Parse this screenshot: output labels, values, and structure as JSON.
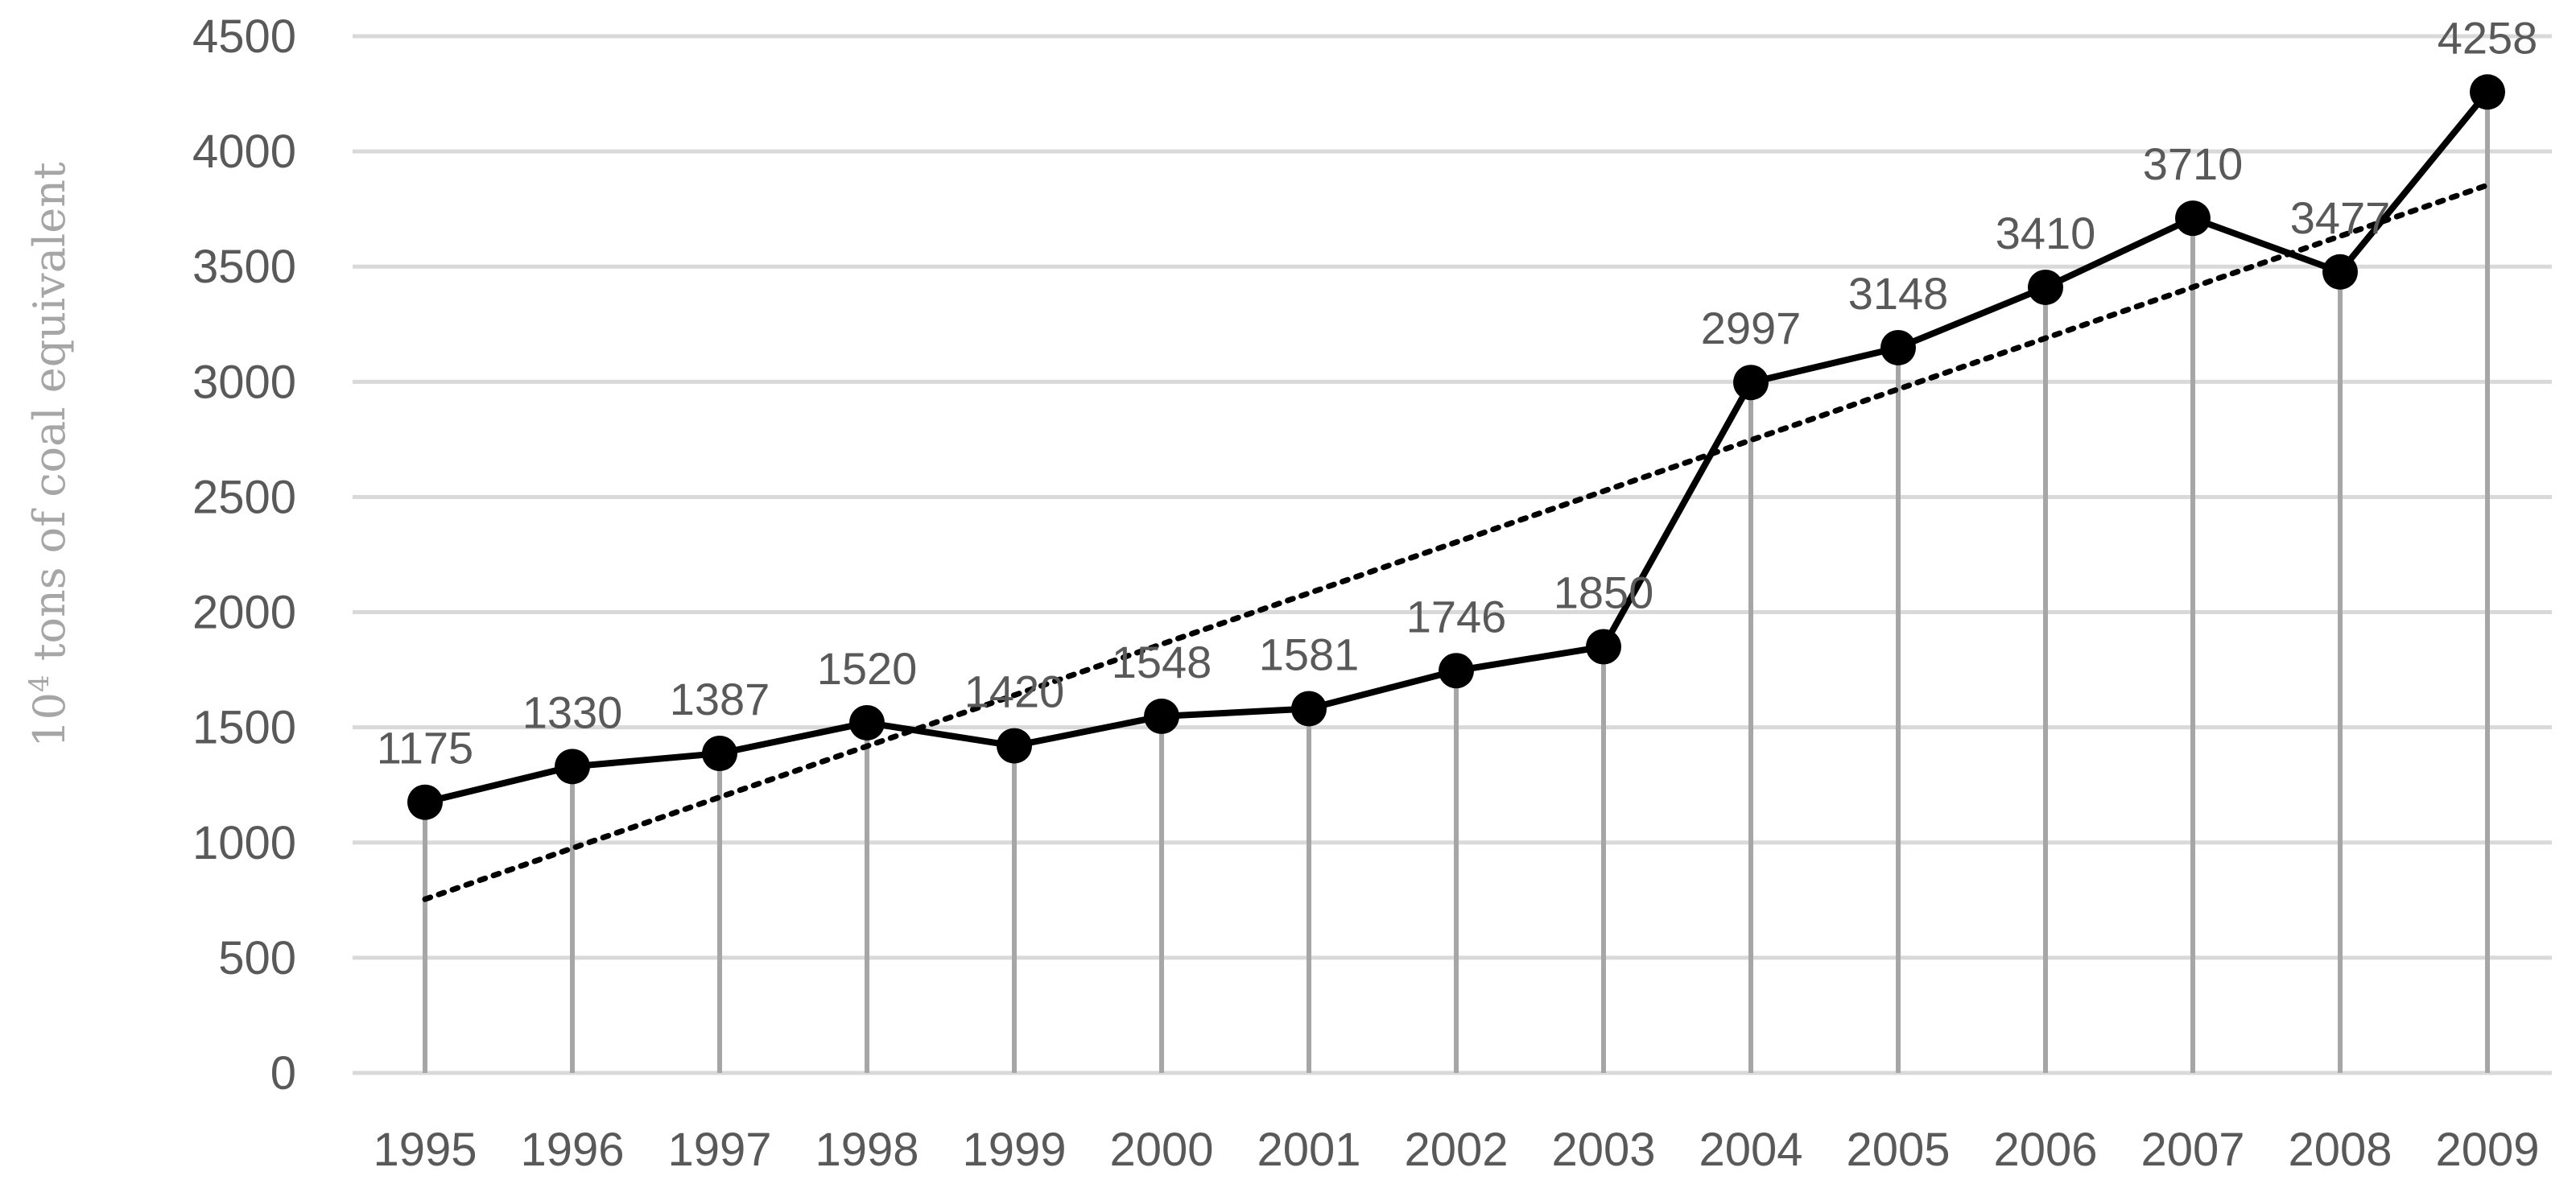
{
  "chart_data": {
    "type": "line",
    "title": "",
    "xlabel": "",
    "ylabel": "10",
    "ylabel_superscript": "4",
    "ylabel_suffix": " tons of coal equivalent",
    "categories": [
      "1995",
      "1996",
      "1997",
      "1998",
      "1999",
      "2000",
      "2001",
      "2002",
      "2003",
      "2004",
      "2005",
      "2006",
      "2007",
      "2008",
      "2009"
    ],
    "series": [
      {
        "values": [
          1175,
          1330,
          1387,
          1520,
          1420,
          1548,
          1581,
          1746,
          1850,
          2997,
          3148,
          3410,
          3710,
          3477,
          4258
        ],
        "data_labels": [
          "1175",
          "1330",
          "1387",
          "1520",
          "1420",
          "1548",
          "1581",
          "1746",
          "1850",
          "2997",
          "3148",
          "3410",
          "3710",
          "3477",
          "4258"
        ],
        "marker": "circle",
        "drop_lines": true,
        "color": "#000000"
      }
    ],
    "trendline": {
      "kind": "linear",
      "style": "dotted",
      "color": "#000000"
    },
    "ylim": [
      0,
      4500
    ],
    "yticks": [
      0,
      500,
      1000,
      1500,
      2000,
      2500,
      3000,
      3500,
      4000,
      4500
    ],
    "grid": true,
    "legend": "none",
    "colors": {
      "grid": "#d9d9d9",
      "drop_line": "#a6a6a6",
      "tick_text": "#595959",
      "axis_title": "#a6a6a6"
    }
  }
}
